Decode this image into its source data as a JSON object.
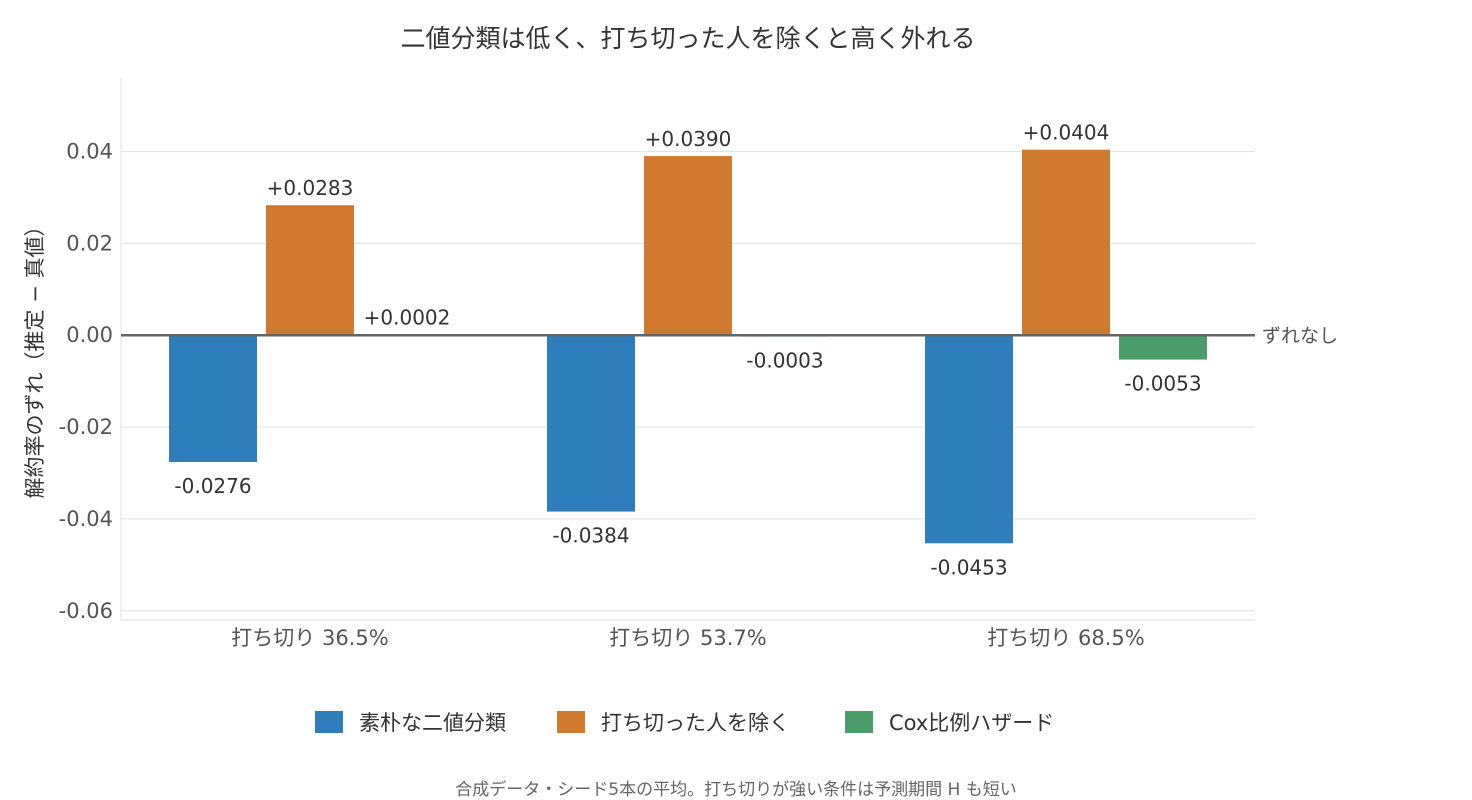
{
  "chart_data": {
    "type": "bar",
    "title": "二値分類は低く、打ち切った人を除くと高く外れる",
    "ylabel": "解約率のずれ（推定 − 真値）",
    "xlabel": "",
    "categories": [
      "打ち切り 36.5%",
      "打ち切り 53.7%",
      "打ち切り 68.5%"
    ],
    "series": [
      {
        "name": "素朴な二値分類",
        "color": "#2e7ebc",
        "values": [
          -0.0276,
          -0.0384,
          -0.0453
        ],
        "labels": [
          "-0.0276",
          "-0.0384",
          "-0.0453"
        ]
      },
      {
        "name": "打ち切った人を除く",
        "color": "#d07a30",
        "values": [
          0.0283,
          0.039,
          0.0404
        ],
        "labels": [
          "+0.0283",
          "+0.0390",
          "+0.0404"
        ]
      },
      {
        "name": "Cox比例ハザード",
        "color": "#4a9d69",
        "values": [
          0.0002,
          -0.0003,
          -0.0053
        ],
        "labels": [
          "+0.0002",
          "-0.0003",
          "-0.0053"
        ]
      }
    ],
    "ylim": [
      -0.062,
      0.056
    ],
    "yticks": [
      -0.06,
      -0.04,
      -0.02,
      0.0,
      0.02,
      0.04
    ],
    "ytick_labels": [
      "-0.06",
      "-0.04",
      "-0.02",
      "0.00",
      "0.02",
      "0.04"
    ],
    "reference_line": {
      "value": 0,
      "label": "ずれなし",
      "color": "#666666"
    },
    "grid": true,
    "legend_position": "bottom-center",
    "note": "合成データ・シード5本の平均。打ち切りが強い条件は予測期間 H も短い"
  }
}
